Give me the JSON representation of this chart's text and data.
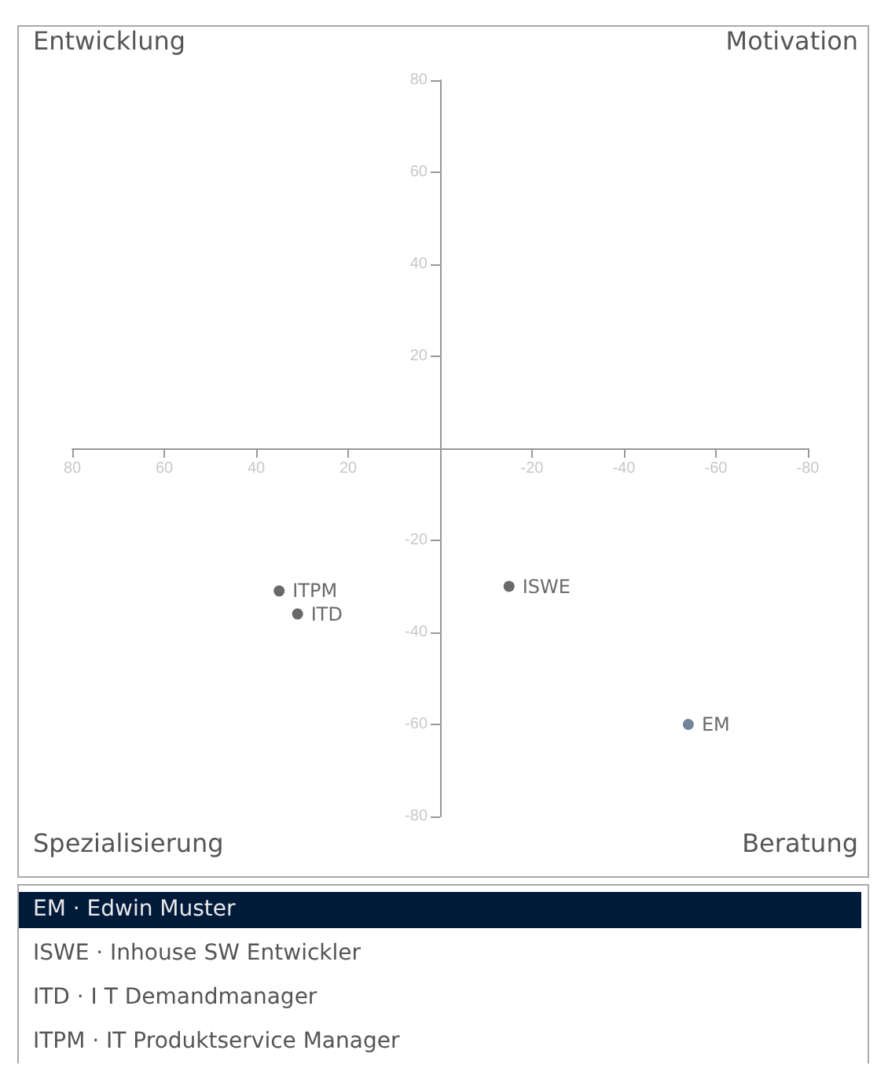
{
  "chart_data": {
    "type": "scatter",
    "series": [
      {
        "name": "EM",
        "color": "#4e6580",
        "x": [
          -54
        ],
        "values": [
          -60
        ]
      },
      {
        "name": "ISWE",
        "color": "#444444",
        "x": [
          -15
        ],
        "values": [
          -30
        ]
      },
      {
        "name": "ITD",
        "color": "#444444",
        "x": [
          31
        ],
        "values": [
          -36
        ]
      },
      {
        "name": "ITPM",
        "color": "#444444",
        "x": [
          35
        ],
        "values": [
          -31
        ]
      }
    ],
    "xlim": [
      80,
      -80
    ],
    "ylim": [
      -80,
      80
    ],
    "xticks": [
      80,
      60,
      40,
      20,
      -20,
      -40,
      -60,
      -80
    ],
    "yticks": [
      80,
      60,
      40,
      20,
      -20,
      -40,
      -60,
      -80
    ],
    "grid": false,
    "legend": false,
    "marker": "circle",
    "annotations": [
      "Entwicklung",
      "Motivation",
      "Spezialisierung",
      "Beratung",
      "EM · Edwin Muster",
      "ISWE · Inhouse SW Entwickler",
      "ITD · I T Demandmanager",
      "ITPM · IT Produktservice Manager"
    ]
  }
}
